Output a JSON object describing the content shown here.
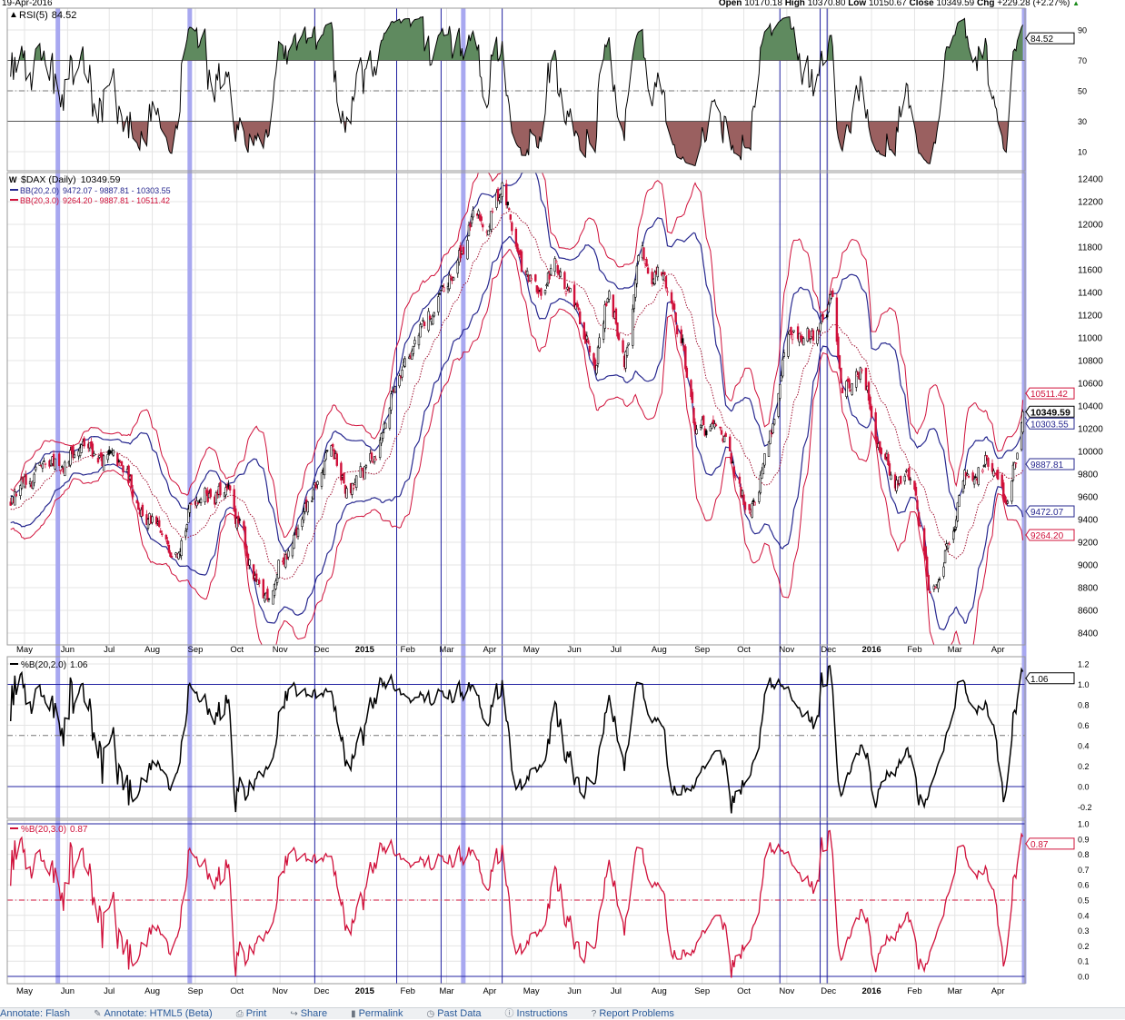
{
  "header": {
    "date": "19-Apr-2016",
    "open_label": "Open",
    "open": "10170.18",
    "high_label": "High",
    "high": "10370.80",
    "low_label": "Low",
    "low": "10150.67",
    "close_label": "Close",
    "close": "10349.59",
    "chg_label": "Chg",
    "chg": "+229.28 (+2.27%)",
    "chg_icon": "triangle-up-icon",
    "up_color": "#1a8a1a"
  },
  "chart_data": {
    "type": "candlestick",
    "colors": {
      "bb2": "#27288f",
      "bb3": "#d0103a",
      "sma": "#a01030",
      "marker_wide": "#a8a8f0",
      "marker_thin": "#2020a0",
      "rsi_over": "#5f8a5f",
      "rsi_under": "#9a6060"
    },
    "x_tick_labels": [
      {
        "label": "May",
        "date": "2014-05-01"
      },
      {
        "label": "Jun",
        "date": "2014-06-01"
      },
      {
        "label": "Jul",
        "date": "2014-07-01"
      },
      {
        "label": "Aug",
        "date": "2014-08-01"
      },
      {
        "label": "Sep",
        "date": "2014-09-01"
      },
      {
        "label": "Oct",
        "date": "2014-10-01"
      },
      {
        "label": "Nov",
        "date": "2014-11-01"
      },
      {
        "label": "Dec",
        "date": "2014-12-01"
      },
      {
        "label": "2015",
        "date": "2015-01-01",
        "bold": true
      },
      {
        "label": "Feb",
        "date": "2015-02-01"
      },
      {
        "label": "Mar",
        "date": "2015-03-01"
      },
      {
        "label": "Apr",
        "date": "2015-04-01"
      },
      {
        "label": "May",
        "date": "2015-05-01"
      },
      {
        "label": "Jun",
        "date": "2015-06-01"
      },
      {
        "label": "Jul",
        "date": "2015-07-01"
      },
      {
        "label": "Aug",
        "date": "2015-08-01"
      },
      {
        "label": "Sep",
        "date": "2015-09-01"
      },
      {
        "label": "Oct",
        "date": "2015-10-01"
      },
      {
        "label": "Nov",
        "date": "2015-11-01"
      },
      {
        "label": "Dec",
        "date": "2015-12-01"
      },
      {
        "label": "2016",
        "date": "2016-01-01",
        "bold": true
      },
      {
        "label": "Feb",
        "date": "2016-02-01"
      },
      {
        "label": "Mar",
        "date": "2016-03-01"
      },
      {
        "label": "Apr",
        "date": "2016-04-01"
      }
    ],
    "vertical_markers": {
      "wide": [
        "2014-05-25",
        "2014-08-28",
        "2015-03-13"
      ],
      "thin": [
        "2014-11-26",
        "2015-01-24",
        "2015-02-25",
        "2015-04-10",
        "2015-10-27",
        "2015-11-25",
        "2015-11-30"
      ]
    },
    "rsi": {
      "label": "RSI(5)",
      "value": "84.52",
      "icon": "chart-icon",
      "y_ticks": [
        "90",
        "70",
        "50",
        "30",
        "10"
      ],
      "levels": [
        70,
        50,
        30
      ],
      "ylim": [
        0,
        100
      ],
      "tag": "84.52"
    },
    "price": {
      "label": "$DAX (Daily)",
      "value": "10349.59",
      "icon": "chart-icon",
      "bb2": {
        "label": "BB(20,2.0)",
        "values": "9472.07 - 9887.81 - 10303.55"
      },
      "bb3": {
        "label": "BB(20,3.0)",
        "values": "9264.20 - 9887.81 - 10511.42"
      },
      "y_ticks": [
        "8400",
        "8600",
        "8800",
        "9000",
        "9200",
        "9400",
        "9600",
        "9800",
        "10000",
        "10200",
        "10400",
        "10600",
        "10800",
        "11000",
        "11200",
        "11400",
        "11600",
        "11800",
        "12000",
        "12200",
        "12400"
      ],
      "ylim": [
        8340,
        12450
      ],
      "tags": [
        {
          "value": "10303.55",
          "series": "bb2"
        },
        {
          "value": "10511.42",
          "series": "bb3"
        },
        {
          "value": "10349.59",
          "series": "close",
          "bold": true
        },
        {
          "value": "9887.81",
          "series": "bb2"
        },
        {
          "value": "9472.07",
          "series": "bb2"
        },
        {
          "value": "9264.20",
          "series": "bb3"
        }
      ],
      "last_bar": {
        "date": "2016-04-19",
        "open": 10170.18,
        "high": 10370.8,
        "low": 10150.67,
        "close": 10349.59
      },
      "closes_approx": [
        [
          "2014-03-10",
          9350
        ],
        [
          "2014-04-21",
          9600
        ],
        [
          "2014-05-22",
          9800
        ],
        [
          "2014-06-06",
          10050
        ],
        [
          "2014-06-28",
          9950
        ],
        [
          "2014-07-17",
          9700
        ],
        [
          "2014-08-11",
          9100
        ],
        [
          "2014-09-05",
          9700
        ],
        [
          "2014-09-24",
          9600
        ],
        [
          "2014-10-06",
          9200
        ],
        [
          "2014-10-19",
          8600
        ],
        [
          "2014-10-31",
          9000
        ],
        [
          "2014-11-16",
          9300
        ],
        [
          "2014-12-08",
          10000
        ],
        [
          "2014-12-20",
          9600
        ],
        [
          "2015-01-02",
          9800
        ],
        [
          "2015-01-14",
          10200
        ],
        [
          "2015-01-27",
          10800
        ],
        [
          "2015-02-14",
          11100
        ],
        [
          "2015-03-05",
          11500
        ],
        [
          "2015-03-18",
          12000
        ],
        [
          "2015-03-30",
          12000
        ],
        [
          "2015-04-10",
          12350
        ],
        [
          "2015-04-24",
          11600
        ],
        [
          "2015-05-07",
          11300
        ],
        [
          "2015-05-19",
          11700
        ],
        [
          "2015-06-01",
          11200
        ],
        [
          "2015-06-16",
          10900
        ],
        [
          "2015-06-26",
          11500
        ],
        [
          "2015-07-07",
          10800
        ],
        [
          "2015-07-19",
          11700
        ],
        [
          "2015-08-05",
          11500
        ],
        [
          "2015-08-18",
          11000
        ],
        [
          "2015-08-27",
          10200
        ],
        [
          "2015-09-05",
          10100
        ],
        [
          "2015-09-15",
          10200
        ],
        [
          "2015-09-27",
          9600
        ],
        [
          "2015-10-04",
          9500
        ],
        [
          "2015-10-19",
          10100
        ],
        [
          "2015-11-01",
          10900
        ],
        [
          "2015-11-19",
          11000
        ],
        [
          "2015-12-04",
          11300
        ],
        [
          "2015-12-11",
          10600
        ],
        [
          "2015-12-24",
          10700
        ],
        [
          "2016-01-05",
          10200
        ],
        [
          "2016-01-18",
          9700
        ],
        [
          "2016-01-30",
          9800
        ],
        [
          "2016-02-12",
          8800
        ],
        [
          "2016-02-24",
          9200
        ],
        [
          "2016-03-08",
          9800
        ],
        [
          "2016-03-23",
          9900
        ],
        [
          "2016-04-07",
          9550
        ],
        [
          "2016-04-14",
          10000
        ],
        [
          "2016-04-19",
          10349.59
        ]
      ]
    },
    "pctb2": {
      "label": "%B(20,2.0)",
      "value": "1.06",
      "y_ticks": [
        "1.2",
        "1.0",
        "0.8",
        "0.6",
        "0.4",
        "0.2",
        "0.0",
        "-0.2"
      ],
      "levels": [
        1.0,
        0.5,
        0.0
      ],
      "ylim": [
        -0.3,
        1.25
      ],
      "tag": "1.06"
    },
    "pctb3": {
      "label": "%B(20,3.0)",
      "value": "0.87",
      "y_ticks": [
        "1.0",
        "0.9",
        "0.8",
        "0.7",
        "0.6",
        "0.5",
        "0.4",
        "0.3",
        "0.2",
        "0.1",
        "0.0"
      ],
      "levels": [
        1.0,
        0.5,
        0.0
      ],
      "ylim": [
        -0.05,
        1.02
      ],
      "tag": "0.87"
    }
  },
  "toolbar": {
    "items": [
      {
        "label": "Annotate: Flash",
        "icon": "flash-icon"
      },
      {
        "label": "Annotate: HTML5 (Beta)",
        "icon": "pencil-icon"
      },
      {
        "label": "Print",
        "icon": "printer-icon"
      },
      {
        "label": "Share",
        "icon": "share-icon"
      },
      {
        "label": "Permalink",
        "icon": "bookmark-icon"
      },
      {
        "label": "Past Data",
        "icon": "clock-icon"
      },
      {
        "label": "Instructions",
        "icon": "info-icon"
      },
      {
        "label": "Report Problems",
        "icon": "help-icon"
      }
    ]
  }
}
